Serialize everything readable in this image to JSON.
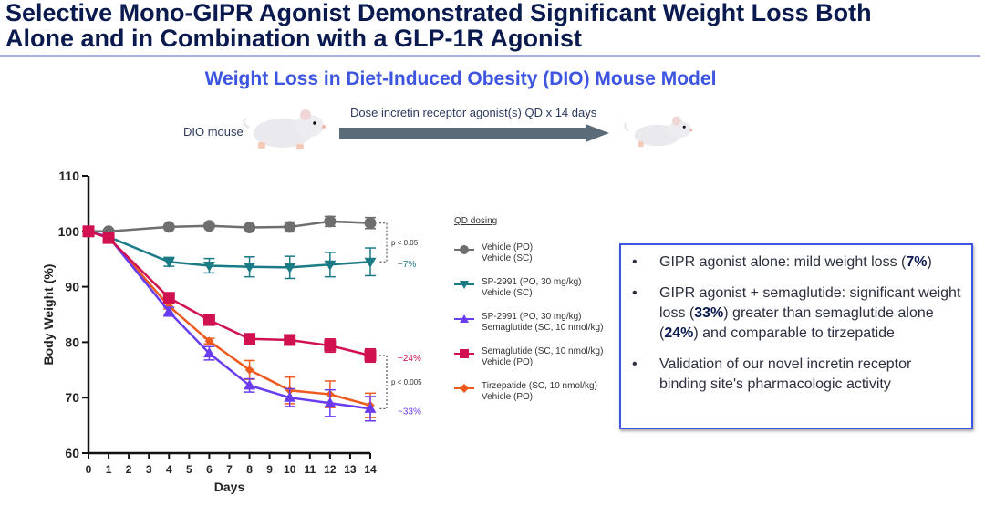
{
  "header": {
    "title_line1": "Selective Mono-GIPR Agonist Demonstrated Significant Weight Loss Both",
    "title_line2": "Alone and in Combination with a GLP-1R Agonist",
    "subtitle": "Weight Loss in Diet-Induced Obesity (DIO) Mouse Model"
  },
  "schematic": {
    "start_label": "DIO mouse",
    "arrow_label": "Dose incretin receptor agonist(s) QD x 14 days",
    "start_icon": "mouse-icon",
    "end_icon": "mouse-icon",
    "arrow_color": "#5b6b78"
  },
  "legend": {
    "title": "QD dosing",
    "items": [
      {
        "line1": "Vehicle (PO)",
        "line2": "Vehicle (SC)",
        "marker": "circle",
        "color": "#6e6e6e"
      },
      {
        "line1": "SP-2991 (PO, 30 mg/kg)",
        "line2": "Vehicle (SC)",
        "marker": "triangle-down",
        "color": "#1a7b86"
      },
      {
        "line1": "SP-2991 (PO, 30 mg/kg)",
        "line2": "Semaglutide (SC, 10 nmol/kg)",
        "marker": "triangle-up",
        "color": "#6a3cf0"
      },
      {
        "line1": "Semaglutide (SC, 10 nmol/kg)",
        "line2": "Vehicle (PO)",
        "marker": "square",
        "color": "#d0104f"
      },
      {
        "line1": "Tirzepatide (SC, 10 nmol/kg)",
        "line2": "Vehicle (PO)",
        "marker": "diamond",
        "color": "#ee5a1e"
      }
    ]
  },
  "callout": {
    "bullets": [
      {
        "parts": [
          {
            "t": "GIPR agonist alone: mild weight loss (",
            "b": false
          },
          {
            "t": "7%",
            "b": true
          },
          {
            "t": ")",
            "b": false
          }
        ]
      },
      {
        "parts": [
          {
            "t": "GIPR agonist + semaglutide: significant weight loss (",
            "b": false
          },
          {
            "t": "33%",
            "b": true
          },
          {
            "t": ") greater than semaglutide alone (",
            "b": false
          },
          {
            "t": "24%",
            "b": true
          },
          {
            "t": ") and comparable to tirzepatide",
            "b": false
          }
        ]
      },
      {
        "parts": [
          {
            "t": "Validation of our novel incretin receptor binding site's pharmacologic activity",
            "b": false
          }
        ]
      }
    ],
    "bullet_char": "•",
    "border_color": "#3d55e0"
  },
  "chart_data": {
    "type": "line",
    "title": "Weight Loss in Diet-Induced Obesity (DIO) Mouse Model",
    "xlabel": "Days",
    "ylabel": "Body Weight (%)",
    "xlim": [
      0,
      14
    ],
    "ylim": [
      60,
      110
    ],
    "xticks": [
      0,
      1,
      2,
      3,
      4,
      5,
      6,
      7,
      8,
      9,
      10,
      11,
      12,
      13,
      14
    ],
    "yticks": [
      60,
      70,
      80,
      90,
      100,
      110
    ],
    "grid": false,
    "legend_position": "right",
    "series": [
      {
        "name": "Vehicle (PO) / Vehicle (SC)",
        "color": "#6e6e6e",
        "marker": "circle",
        "x": [
          0,
          1,
          4,
          6,
          8,
          10,
          12,
          14
        ],
        "y": [
          100,
          100,
          100.8,
          101,
          100.7,
          100.8,
          101.8,
          101.5
        ],
        "err": [
          0,
          0,
          0.3,
          0.3,
          0.4,
          0.9,
          0.9,
          1.0
        ]
      },
      {
        "name": "SP-2991 (PO, 30 mg/kg) / Vehicle (SC)",
        "color": "#1a7b86",
        "marker": "triangle-down",
        "x": [
          0,
          1,
          4,
          6,
          8,
          10,
          12,
          14
        ],
        "y": [
          100,
          99,
          94.5,
          93.8,
          93.6,
          93.5,
          94,
          94.5
        ],
        "err": [
          0,
          0,
          0.8,
          1.3,
          1.8,
          2.0,
          2.2,
          2.5
        ]
      },
      {
        "name": "SP-2991 (PO, 30 mg/kg) / Semaglutide (SC, 10 nmol/kg)",
        "color": "#6a3cf0",
        "marker": "triangle-up",
        "x": [
          0,
          1,
          4,
          6,
          8,
          10,
          12,
          14
        ],
        "y": [
          100,
          99,
          85.5,
          78,
          72.2,
          70,
          69,
          68
        ],
        "err": [
          0,
          0,
          0.8,
          1.2,
          1.2,
          1.6,
          2.4,
          2.2
        ]
      },
      {
        "name": "Semaglutide (SC, 10 nmol/kg) / Vehicle (PO)",
        "color": "#d0104f",
        "marker": "square",
        "x": [
          0,
          1,
          4,
          6,
          8,
          10,
          12,
          14
        ],
        "y": [
          100,
          98.8,
          88,
          84,
          80.6,
          80.4,
          79.4,
          77.6
        ],
        "err": [
          0,
          0,
          0.4,
          0.4,
          0.7,
          0.8,
          1.2,
          1.2
        ]
      },
      {
        "name": "Tirzepatide (SC, 10 nmol/kg) / Vehicle (PO)",
        "color": "#ee5a1e",
        "marker": "diamond",
        "x": [
          0,
          1,
          4,
          6,
          8,
          10,
          12,
          14
        ],
        "y": [
          100,
          99,
          86.5,
          80.2,
          75,
          71.3,
          70.6,
          68.6
        ],
        "err": [
          0,
          0,
          0.5,
          0.5,
          1.7,
          2.4,
          2.4,
          2.2
        ]
      }
    ],
    "annotations": [
      {
        "text": "p < 0.05",
        "between": [
          "Vehicle (PO) / Vehicle (SC)",
          "SP-2991 (PO, 30 mg/kg) / Vehicle (SC)"
        ],
        "at_x": 14
      },
      {
        "text": "~7%",
        "series": "SP-2991 (PO, 30 mg/kg) / Vehicle (SC)",
        "color": "#1a7b86"
      },
      {
        "text": "~24%",
        "series": "Semaglutide (SC, 10 nmol/kg) / Vehicle (PO)",
        "color": "#d0104f"
      },
      {
        "text": "p < 0.005",
        "between": [
          "Semaglutide (SC, 10 nmol/kg) / Vehicle (PO)",
          "SP-2991 (PO, 30 mg/kg) / Semaglutide (SC, 10 nmol/kg)"
        ],
        "at_x": 14
      },
      {
        "text": "~33%",
        "series": "SP-2991 (PO, 30 mg/kg) / Semaglutide (SC, 10 nmol/kg)",
        "color": "#6a3cf0"
      }
    ]
  }
}
